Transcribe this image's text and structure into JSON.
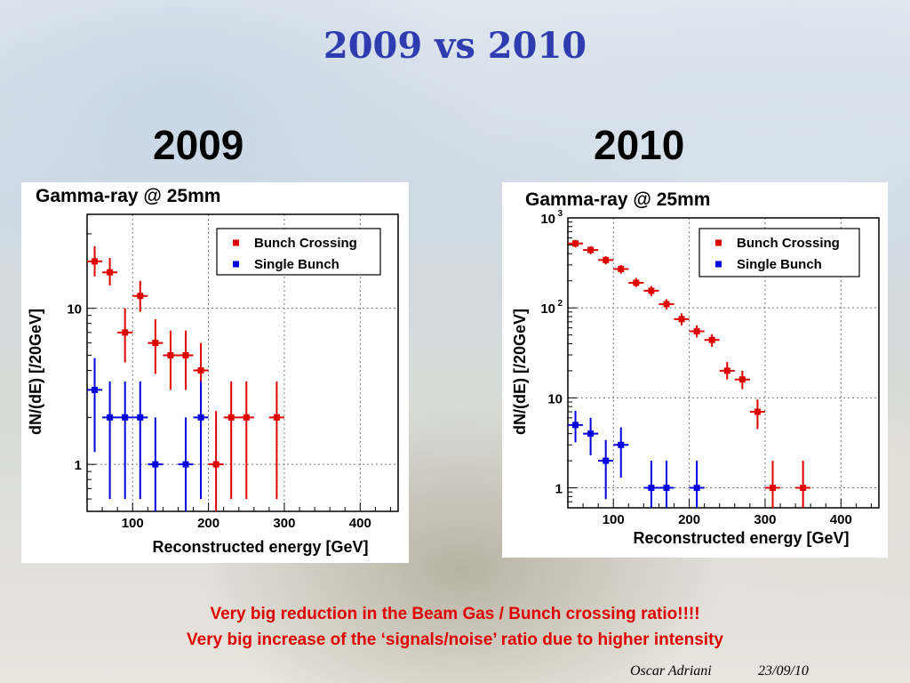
{
  "slide": {
    "title": "2009 vs 2010",
    "notes": [
      "Very big reduction in the Beam Gas / Bunch crossing ratio!!!!",
      "Very big increase of the ‘signals/noise’ ratio due to higher intensity"
    ],
    "author": "Oscar Adriani",
    "date": "23/09/10"
  },
  "chart_data": [
    {
      "id": "2009",
      "heading": "2009",
      "type": "scatter",
      "title": "Gamma-ray @ 25mm",
      "xlabel": "Reconstructed energy [GeV]",
      "ylabel": "dN/(dE) [/20GeV]",
      "xlim": [
        40,
        450
      ],
      "ylim": [
        0.5,
        40
      ],
      "yscale": "log",
      "xticks": [
        100,
        200,
        300,
        400
      ],
      "yticks": [
        {
          "value": 1,
          "label": "1"
        },
        {
          "value": 10,
          "label": "10"
        }
      ],
      "grid": true,
      "legend_position": "top-right",
      "series": [
        {
          "name": "Bunch Crossing",
          "color": "#e00000",
          "points": [
            {
              "x": 50,
              "y": 20,
              "lo": 16,
              "hi": 25
            },
            {
              "x": 70,
              "y": 17,
              "lo": 14,
              "hi": 21
            },
            {
              "x": 90,
              "y": 7,
              "lo": 4.5,
              "hi": 10
            },
            {
              "x": 110,
              "y": 12,
              "lo": 9.5,
              "hi": 15
            },
            {
              "x": 130,
              "y": 6,
              "lo": 3.8,
              "hi": 8.5
            },
            {
              "x": 150,
              "y": 5,
              "lo": 3,
              "hi": 7.2
            },
            {
              "x": 170,
              "y": 5,
              "lo": 3,
              "hi": 7.2
            },
            {
              "x": 190,
              "y": 4,
              "lo": 2.2,
              "hi": 6
            },
            {
              "x": 210,
              "y": 1,
              "lo": 0.5,
              "hi": 2.2
            },
            {
              "x": 230,
              "y": 2,
              "lo": 0.6,
              "hi": 3.4
            },
            {
              "x": 250,
              "y": 2,
              "lo": 0.6,
              "hi": 3.4
            },
            {
              "x": 290,
              "y": 2,
              "lo": 0.6,
              "hi": 3.4
            }
          ]
        },
        {
          "name": "Single Bunch",
          "color": "#0000e0",
          "points": [
            {
              "x": 50,
              "y": 3,
              "lo": 1.2,
              "hi": 4.8
            },
            {
              "x": 70,
              "y": 2,
              "lo": 0.6,
              "hi": 3.4
            },
            {
              "x": 90,
              "y": 2,
              "lo": 0.6,
              "hi": 3.4
            },
            {
              "x": 110,
              "y": 2,
              "lo": 0.6,
              "hi": 3.4
            },
            {
              "x": 130,
              "y": 1,
              "lo": 0.5,
              "hi": 2.0
            },
            {
              "x": 170,
              "y": 1,
              "lo": 0.5,
              "hi": 2.0
            },
            {
              "x": 190,
              "y": 2,
              "lo": 0.6,
              "hi": 3.4
            }
          ]
        }
      ]
    },
    {
      "id": "2010",
      "heading": "2010",
      "type": "scatter",
      "title": "Gamma-ray @ 25mm",
      "xlabel": "Reconstructed energy [GeV]",
      "ylabel": "dN/(dE) [/20GeV]",
      "xlim": [
        40,
        450
      ],
      "ylim": [
        0.6,
        1000
      ],
      "yscale": "log",
      "xticks": [
        100,
        200,
        300,
        400
      ],
      "yticks": [
        {
          "value": 1,
          "label": "1"
        },
        {
          "value": 10,
          "label": "10"
        },
        {
          "value": 100,
          "label": "10",
          "exponent": "2"
        },
        {
          "value": 1000,
          "label": "10",
          "exponent": "3"
        }
      ],
      "grid": true,
      "legend_position": "top-right",
      "series": [
        {
          "name": "Bunch Crossing",
          "color": "#e00000",
          "points": [
            {
              "x": 50,
              "y": 520,
              "lo": 470,
              "hi": 570
            },
            {
              "x": 70,
              "y": 440,
              "lo": 395,
              "hi": 485
            },
            {
              "x": 90,
              "y": 340,
              "lo": 305,
              "hi": 375
            },
            {
              "x": 110,
              "y": 270,
              "lo": 240,
              "hi": 300
            },
            {
              "x": 130,
              "y": 190,
              "lo": 170,
              "hi": 215
            },
            {
              "x": 150,
              "y": 155,
              "lo": 135,
              "hi": 175
            },
            {
              "x": 170,
              "y": 110,
              "lo": 96,
              "hi": 125
            },
            {
              "x": 190,
              "y": 75,
              "lo": 64,
              "hi": 87
            },
            {
              "x": 210,
              "y": 55,
              "lo": 47,
              "hi": 64
            },
            {
              "x": 230,
              "y": 44,
              "lo": 37,
              "hi": 51
            },
            {
              "x": 250,
              "y": 20,
              "lo": 16,
              "hi": 25
            },
            {
              "x": 270,
              "y": 16,
              "lo": 12.5,
              "hi": 20
            },
            {
              "x": 290,
              "y": 7,
              "lo": 4.5,
              "hi": 9.6
            },
            {
              "x": 310,
              "y": 1,
              "lo": 0.6,
              "hi": 2.0
            },
            {
              "x": 350,
              "y": 1,
              "lo": 0.6,
              "hi": 2.0
            }
          ]
        },
        {
          "name": "Single Bunch",
          "color": "#0000e0",
          "points": [
            {
              "x": 50,
              "y": 5,
              "lo": 3.2,
              "hi": 7.2
            },
            {
              "x": 70,
              "y": 4,
              "lo": 2.3,
              "hi": 6
            },
            {
              "x": 90,
              "y": 2,
              "lo": 0.75,
              "hi": 3.4
            },
            {
              "x": 110,
              "y": 3,
              "lo": 1.3,
              "hi": 4.7
            },
            {
              "x": 150,
              "y": 1,
              "lo": 0.6,
              "hi": 2.0
            },
            {
              "x": 170,
              "y": 1,
              "lo": 0.6,
              "hi": 2.0
            },
            {
              "x": 210,
              "y": 1,
              "lo": 0.6,
              "hi": 2.0
            }
          ]
        }
      ]
    }
  ]
}
